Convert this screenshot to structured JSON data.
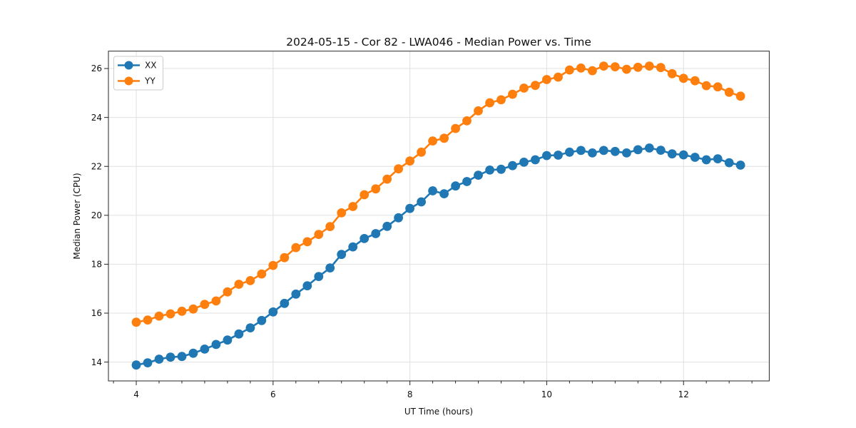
{
  "figure": {
    "background": "#ffffff"
  },
  "chart_data": {
    "type": "line",
    "title": "2024-05-15 - Cor 82 - LWA046 - Median Power vs. Time",
    "xlabel": "UT Time (hours)",
    "ylabel": "Median Power (CPU)",
    "xlim": [
      3.593,
      13.253
    ],
    "ylim": [
      13.23,
      26.71
    ],
    "x_major_ticks": [
      4,
      6,
      8,
      10,
      12
    ],
    "x_minor_step": 0.3333333,
    "y_major_ticks": [
      14,
      16,
      18,
      20,
      22,
      24,
      26
    ],
    "grid": "major",
    "legend_position": "upper-left",
    "x": [
      4.0,
      4.167,
      4.333,
      4.5,
      4.667,
      4.833,
      5.0,
      5.167,
      5.333,
      5.5,
      5.667,
      5.833,
      6.0,
      6.167,
      6.333,
      6.5,
      6.667,
      6.833,
      7.0,
      7.167,
      7.333,
      7.5,
      7.667,
      7.833,
      8.0,
      8.167,
      8.333,
      8.5,
      8.667,
      8.833,
      9.0,
      9.167,
      9.333,
      9.5,
      9.667,
      9.833,
      10.0,
      10.167,
      10.333,
      10.5,
      10.667,
      10.833,
      11.0,
      11.167,
      11.333,
      11.5,
      11.667,
      11.833,
      12.0,
      12.167,
      12.333,
      12.5,
      12.667,
      12.833
    ],
    "series": [
      {
        "name": "XX",
        "color": "#1f77b4",
        "values": [
          13.88,
          13.97,
          14.12,
          14.2,
          14.23,
          14.36,
          14.53,
          14.72,
          14.9,
          15.15,
          15.4,
          15.7,
          16.05,
          16.4,
          16.78,
          17.12,
          17.5,
          17.85,
          18.4,
          18.71,
          19.05,
          19.25,
          19.55,
          19.9,
          20.28,
          20.55,
          21.0,
          20.88,
          21.2,
          21.38,
          21.64,
          21.85,
          21.88,
          22.03,
          22.17,
          22.27,
          22.44,
          22.46,
          22.58,
          22.65,
          22.55,
          22.65,
          22.61,
          22.55,
          22.68,
          22.75,
          22.66,
          22.51,
          22.47,
          22.37,
          22.27,
          22.31,
          22.15,
          22.05
        ]
      },
      {
        "name": "YY",
        "color": "#ff7f0e",
        "values": [
          15.63,
          15.72,
          15.88,
          15.97,
          16.08,
          16.17,
          16.36,
          16.5,
          16.87,
          17.18,
          17.33,
          17.6,
          17.95,
          18.27,
          18.68,
          18.92,
          19.22,
          19.54,
          20.1,
          20.36,
          20.84,
          21.08,
          21.48,
          21.9,
          22.22,
          22.58,
          23.04,
          23.15,
          23.55,
          23.86,
          24.27,
          24.6,
          24.72,
          24.95,
          25.2,
          25.31,
          25.55,
          25.65,
          25.94,
          26.02,
          25.91,
          26.1,
          26.07,
          25.97,
          26.05,
          26.1,
          26.04,
          25.79,
          25.6,
          25.5,
          25.3,
          25.25,
          25.03,
          24.87
        ]
      }
    ]
  }
}
